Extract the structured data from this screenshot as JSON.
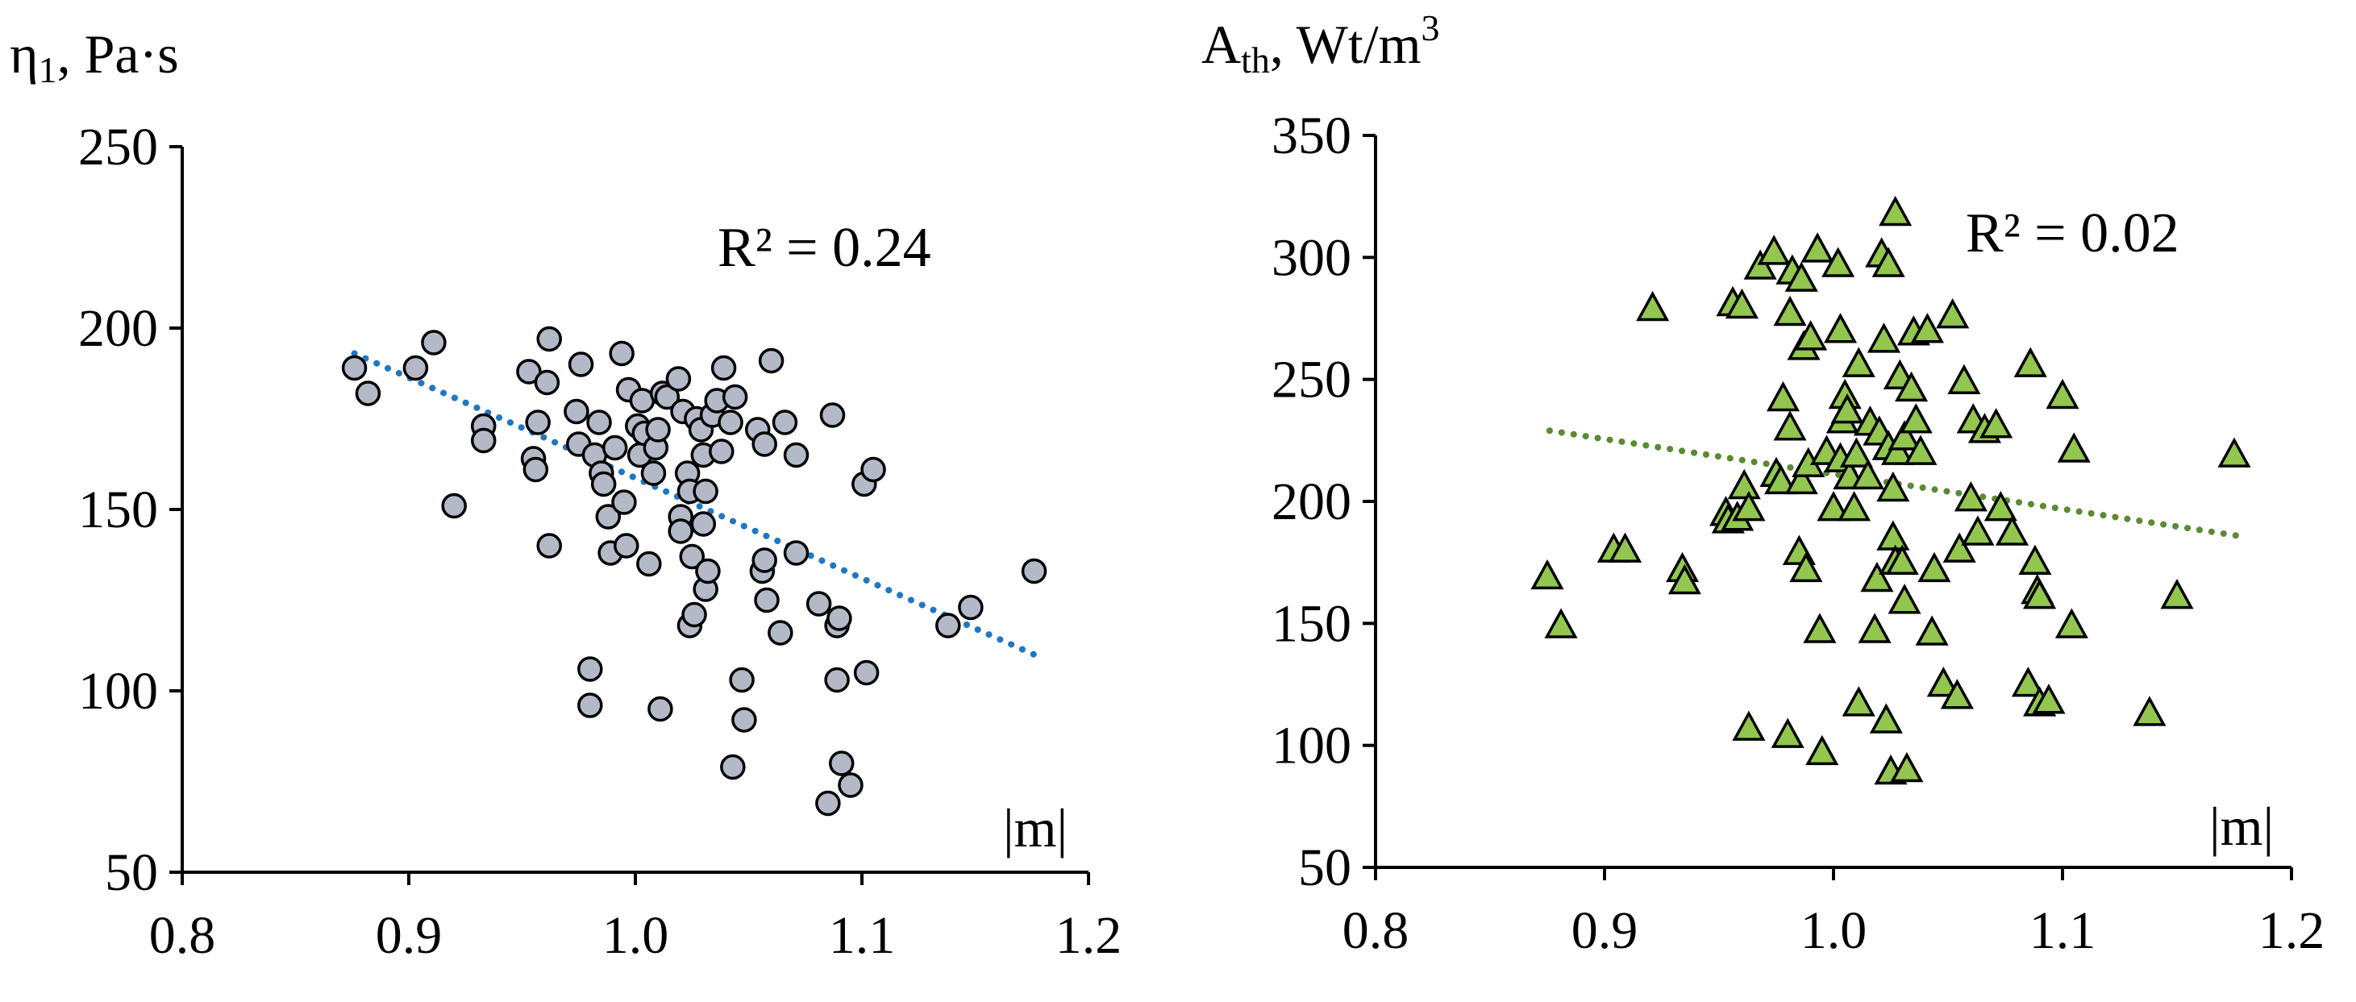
{
  "chart_data": [
    {
      "type": "scatter",
      "id": "left",
      "ylabel_main": "η",
      "ylabel_sub": "1",
      "ylabel_rest": ", Pa·s",
      "xlabel": "|m|",
      "annotation": "R² = 0.24",
      "xlim": [
        0.8,
        1.2
      ],
      "ylim": [
        50,
        250
      ],
      "xticks": [
        0.8,
        0.9,
        1.0,
        1.1,
        1.2
      ],
      "xtick_labels": [
        "0.8",
        "0.9",
        "1.0",
        "1.1",
        "1.2"
      ],
      "yticks": [
        50,
        100,
        150,
        200,
        250
      ],
      "ytick_labels": [
        "50",
        "100",
        "150",
        "200",
        "250"
      ],
      "marker": "circle",
      "marker_color": "#b4b9c8",
      "trend_color": "#1f77c4",
      "trendline": {
        "x": [
          0.876,
          1.176
        ],
        "y": [
          193,
          110
        ]
      },
      "points": [
        [
          0.876,
          189
        ],
        [
          0.882,
          182
        ],
        [
          0.903,
          189
        ],
        [
          0.911,
          196
        ],
        [
          0.933,
          173
        ],
        [
          0.933,
          169
        ],
        [
          0.92,
          151
        ],
        [
          0.953,
          188
        ],
        [
          0.955,
          164
        ],
        [
          0.956,
          161
        ],
        [
          0.957,
          174
        ],
        [
          0.961,
          185
        ],
        [
          0.962,
          197
        ],
        [
          0.962,
          140
        ],
        [
          0.974,
          177
        ],
        [
          0.975,
          168
        ],
        [
          0.976,
          190
        ],
        [
          0.98,
          106
        ],
        [
          0.98,
          96
        ],
        [
          0.982,
          165
        ],
        [
          0.984,
          174
        ],
        [
          0.985,
          160
        ],
        [
          0.986,
          157
        ],
        [
          0.988,
          148
        ],
        [
          0.989,
          138
        ],
        [
          0.991,
          167
        ],
        [
          0.994,
          193
        ],
        [
          0.995,
          152
        ],
        [
          0.996,
          140
        ],
        [
          0.997,
          183
        ],
        [
          1.001,
          173
        ],
        [
          1.002,
          165
        ],
        [
          1.003,
          180
        ],
        [
          1.004,
          171
        ],
        [
          1.006,
          135
        ],
        [
          1.008,
          160
        ],
        [
          1.009,
          167
        ],
        [
          1.01,
          172
        ],
        [
          1.011,
          95
        ],
        [
          1.012,
          182
        ],
        [
          1.014,
          181
        ],
        [
          1.019,
          186
        ],
        [
          1.02,
          148
        ],
        [
          1.02,
          144
        ],
        [
          1.021,
          177
        ],
        [
          1.023,
          160
        ],
        [
          1.024,
          155
        ],
        [
          1.024,
          118
        ],
        [
          1.025,
          137
        ],
        [
          1.026,
          121
        ],
        [
          1.027,
          175
        ],
        [
          1.029,
          172
        ],
        [
          1.03,
          165
        ],
        [
          1.03,
          146
        ],
        [
          1.031,
          155
        ],
        [
          1.031,
          128
        ],
        [
          1.032,
          133
        ],
        [
          1.034,
          176
        ],
        [
          1.036,
          180
        ],
        [
          1.038,
          166
        ],
        [
          1.039,
          189
        ],
        [
          1.042,
          174
        ],
        [
          1.043,
          79
        ],
        [
          1.044,
          181
        ],
        [
          1.047,
          103
        ],
        [
          1.048,
          92
        ],
        [
          1.054,
          172
        ],
        [
          1.056,
          133
        ],
        [
          1.057,
          136
        ],
        [
          1.057,
          168
        ],
        [
          1.058,
          125
        ],
        [
          1.06,
          191
        ],
        [
          1.064,
          116
        ],
        [
          1.066,
          174
        ],
        [
          1.071,
          165
        ],
        [
          1.071,
          138
        ],
        [
          1.081,
          124
        ],
        [
          1.085,
          69
        ],
        [
          1.087,
          176
        ],
        [
          1.089,
          118
        ],
        [
          1.089,
          103
        ],
        [
          1.09,
          120
        ],
        [
          1.091,
          80
        ],
        [
          1.095,
          74
        ],
        [
          1.101,
          157
        ],
        [
          1.102,
          105
        ],
        [
          1.105,
          161
        ],
        [
          1.138,
          118
        ],
        [
          1.148,
          123
        ],
        [
          1.176,
          133
        ]
      ]
    },
    {
      "type": "scatter",
      "id": "right",
      "ylabel_main": "A",
      "ylabel_sub": "th",
      "ylabel_rest": ", Wt/m",
      "ylabel_sup": "3",
      "xlabel": "|m|",
      "annotation": "R² = 0.02",
      "xlim": [
        0.8,
        1.2
      ],
      "ylim": [
        50,
        350
      ],
      "xticks": [
        0.8,
        0.9,
        1.0,
        1.1,
        1.2
      ],
      "xtick_labels": [
        "0.8",
        "0.9",
        "1.0",
        "1.1",
        "1.2"
      ],
      "yticks": [
        50,
        100,
        150,
        200,
        250,
        300,
        350
      ],
      "ytick_labels": [
        "50",
        "100",
        "150",
        "200",
        "250",
        "300",
        "350"
      ],
      "marker": "triangle",
      "marker_color": "#92c64e",
      "trend_color": "#5a8a32",
      "trendline": {
        "x": [
          0.876,
          1.176
        ],
        "y": [
          229,
          186
        ]
      },
      "points": [
        [
          0.875,
          169
        ],
        [
          0.881,
          149
        ],
        [
          0.904,
          180
        ],
        [
          0.909,
          180
        ],
        [
          0.921,
          279
        ],
        [
          0.934,
          172
        ],
        [
          0.935,
          167
        ],
        [
          0.953,
          195
        ],
        [
          0.954,
          192
        ],
        [
          0.956,
          281
        ],
        [
          0.958,
          193
        ],
        [
          0.96,
          280
        ],
        [
          0.961,
          206
        ],
        [
          0.963,
          197
        ],
        [
          0.963,
          107
        ],
        [
          0.968,
          296
        ],
        [
          0.974,
          302
        ],
        [
          0.975,
          211
        ],
        [
          0.977,
          208
        ],
        [
          0.978,
          242
        ],
        [
          0.98,
          104
        ],
        [
          0.981,
          230
        ],
        [
          0.981,
          277
        ],
        [
          0.982,
          294
        ],
        [
          0.985,
          179
        ],
        [
          0.986,
          208
        ],
        [
          0.986,
          291
        ],
        [
          0.987,
          263
        ],
        [
          0.988,
          172
        ],
        [
          0.989,
          215
        ],
        [
          0.99,
          267
        ],
        [
          0.993,
          303
        ],
        [
          0.994,
          147
        ],
        [
          0.995,
          97
        ],
        [
          0.997,
          220
        ],
        [
          1.0,
          197
        ],
        [
          1.002,
          297
        ],
        [
          1.003,
          217
        ],
        [
          1.003,
          270
        ],
        [
          1.004,
          233
        ],
        [
          1.005,
          243
        ],
        [
          1.006,
          237
        ],
        [
          1.007,
          210
        ],
        [
          1.009,
          197
        ],
        [
          1.01,
          219
        ],
        [
          1.011,
          256
        ],
        [
          1.011,
          117
        ],
        [
          1.015,
          210
        ],
        [
          1.016,
          232
        ],
        [
          1.018,
          147
        ],
        [
          1.019,
          168
        ],
        [
          1.02,
          228
        ],
        [
          1.021,
          301
        ],
        [
          1.022,
          266
        ],
        [
          1.023,
          110
        ],
        [
          1.024,
          222
        ],
        [
          1.024,
          297
        ],
        [
          1.025,
          89
        ],
        [
          1.026,
          205
        ],
        [
          1.026,
          185
        ],
        [
          1.027,
          175
        ],
        [
          1.027,
          318
        ],
        [
          1.028,
          220
        ],
        [
          1.029,
          251
        ],
        [
          1.03,
          175
        ],
        [
          1.031,
          159
        ],
        [
          1.031,
          226
        ],
        [
          1.032,
          90
        ],
        [
          1.034,
          246
        ],
        [
          1.035,
          269
        ],
        [
          1.036,
          233
        ],
        [
          1.038,
          220
        ],
        [
          1.041,
          270
        ],
        [
          1.043,
          146
        ],
        [
          1.044,
          172
        ],
        [
          1.048,
          125
        ],
        [
          1.052,
          276
        ],
        [
          1.054,
          120
        ],
        [
          1.055,
          180
        ],
        [
          1.057,
          249
        ],
        [
          1.06,
          201
        ],
        [
          1.061,
          233
        ],
        [
          1.063,
          187
        ],
        [
          1.066,
          229
        ],
        [
          1.071,
          231
        ],
        [
          1.073,
          197
        ],
        [
          1.078,
          187
        ],
        [
          1.085,
          125
        ],
        [
          1.086,
          256
        ],
        [
          1.088,
          175
        ],
        [
          1.089,
          163
        ],
        [
          1.09,
          161
        ],
        [
          1.09,
          117
        ],
        [
          1.094,
          118
        ],
        [
          1.1,
          243
        ],
        [
          1.104,
          149
        ],
        [
          1.105,
          221
        ],
        [
          1.138,
          113
        ],
        [
          1.15,
          161
        ],
        [
          1.175,
          219
        ]
      ]
    }
  ]
}
